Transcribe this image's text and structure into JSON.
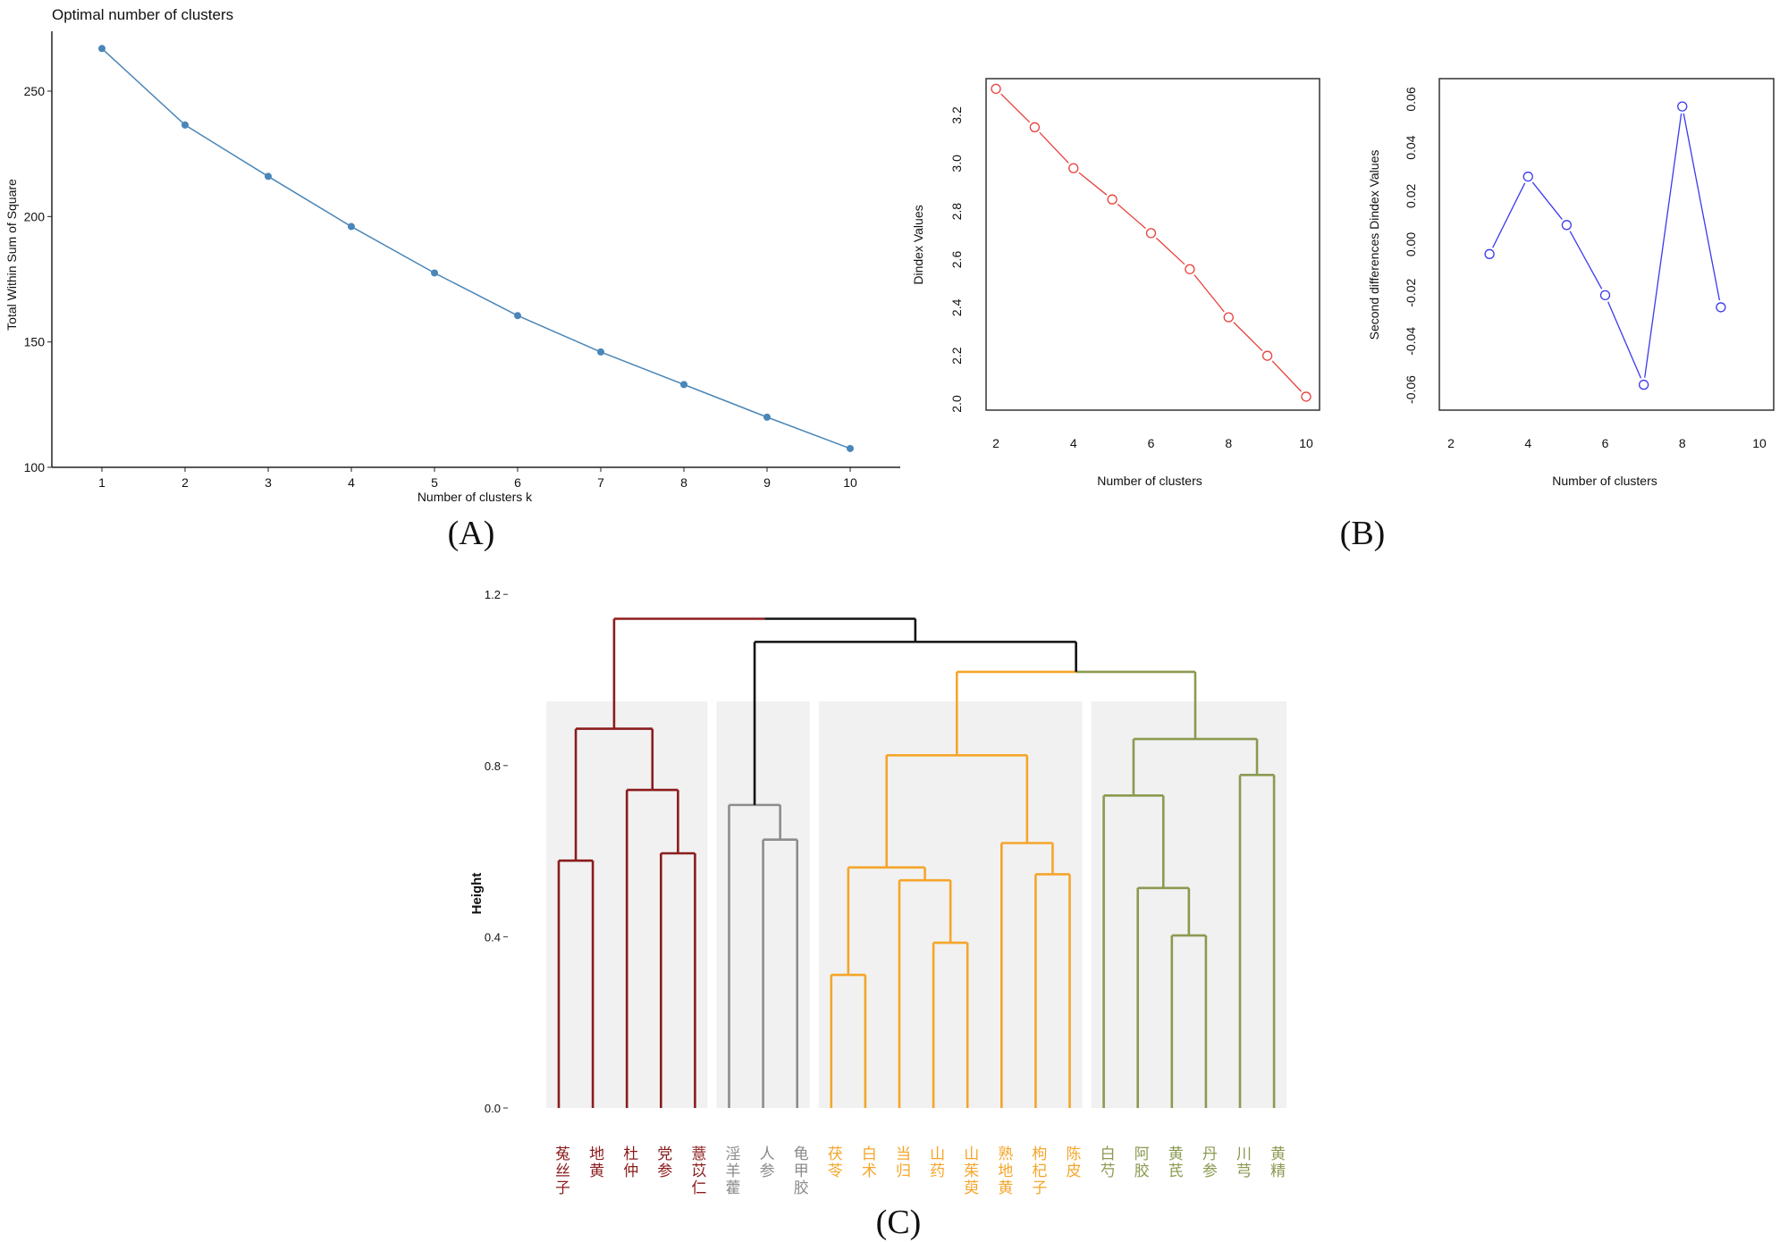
{
  "panel_labels": {
    "a": "(A)",
    "b": "(B)",
    "c": "(C)"
  },
  "chart_data": [
    {
      "id": "elbow",
      "type": "line",
      "title": "Optimal number of clusters",
      "xlabel": "Number of clusters k",
      "ylabel": "Total Within Sum of Square",
      "x": [
        1,
        2,
        3,
        4,
        5,
        6,
        7,
        8,
        9,
        10
      ],
      "values": [
        267,
        236.5,
        216,
        196,
        177.5,
        160.5,
        146,
        133,
        120,
        107.5
      ],
      "yticks": [
        100,
        150,
        200,
        250
      ],
      "ylim": [
        100,
        272
      ],
      "xlim": [
        0.4,
        10.6
      ],
      "color": "#4a86b8",
      "grid": false
    },
    {
      "id": "dindex",
      "type": "line",
      "title": "",
      "xlabel": "Number of clusters",
      "ylabel": "Dindex Values",
      "x": [
        2,
        3,
        4,
        5,
        6,
        7,
        8,
        9,
        10
      ],
      "values": [
        3.31,
        3.15,
        2.98,
        2.85,
        2.71,
        2.56,
        2.36,
        2.2,
        2.03
      ],
      "xticks": [
        2,
        4,
        6,
        8,
        10
      ],
      "yticks": [
        "2.0",
        "2.2",
        "2.4",
        "2.6",
        "2.8",
        "3.0",
        "3.2"
      ],
      "color": "#e8403a",
      "grid": false
    },
    {
      "id": "second-diff",
      "type": "line",
      "title": "",
      "xlabel": "Number of clusters",
      "ylabel": "Second differences Dindex Values",
      "x": [
        3,
        4,
        5,
        6,
        7,
        8,
        9
      ],
      "values": [
        -0.004,
        0.028,
        0.008,
        -0.021,
        -0.058,
        0.057,
        -0.026
      ],
      "xticks": [
        2,
        4,
        6,
        8,
        10
      ],
      "yticks": [
        "-0.06",
        "-0.04",
        "-0.02",
        "0.00",
        "0.02",
        "0.04",
        "0.06"
      ],
      "color": "#3a3aee",
      "grid": false
    },
    {
      "id": "dendrogram",
      "type": "dendrogram",
      "ylabel": "Height",
      "yticks": [
        "0.0",
        "0.4",
        "0.8",
        "1.2"
      ],
      "leaves": [
        "菟丝子",
        "地黄",
        "杜仲",
        "党参",
        "薏苡仁",
        "淫羊藿",
        "人参",
        "龟甲胶",
        "茯苓",
        "白术",
        "当归",
        "山药",
        "山茱萸",
        "熟地黄",
        "枸杞子",
        "陈皮",
        "白芍",
        "阿胶",
        "黄芪",
        "丹参",
        "川芎",
        "黄精"
      ],
      "leaf_cluster": [
        0,
        0,
        0,
        0,
        0,
        1,
        1,
        1,
        2,
        2,
        2,
        2,
        2,
        2,
        2,
        2,
        3,
        3,
        3,
        3,
        3,
        3
      ],
      "cluster_colors": [
        "#8b1c1c",
        "#8c8c8c",
        "#f5a52a",
        "#8a9a50"
      ],
      "top_color": "#111111",
      "cluster_box_height": 0.95,
      "merges": [
        {
          "a": "L0",
          "b": "L1",
          "h": 0.578,
          "c": 0
        },
        {
          "a": "L3",
          "b": "L4",
          "h": 0.595,
          "c": 0
        },
        {
          "a": "L2",
          "b": "M1",
          "h": 0.743,
          "c": 0
        },
        {
          "a": "M0",
          "b": "M2",
          "h": 0.886,
          "c": 0
        },
        {
          "a": "L6",
          "b": "L7",
          "h": 0.627,
          "c": 1
        },
        {
          "a": "L5",
          "b": "M4",
          "h": 0.708,
          "c": 1
        },
        {
          "a": "L8",
          "b": "L9",
          "h": 0.311,
          "c": 2
        },
        {
          "a": "L11",
          "b": "L12",
          "h": 0.386,
          "c": 2
        },
        {
          "a": "L10",
          "b": "M7",
          "h": 0.532,
          "c": 2
        },
        {
          "a": "M6",
          "b": "M8",
          "h": 0.562,
          "c": 2
        },
        {
          "a": "L14",
          "b": "L15",
          "h": 0.546,
          "c": 2
        },
        {
          "a": "L13",
          "b": "M10",
          "h": 0.619,
          "c": 2
        },
        {
          "a": "M9",
          "b": "M11",
          "h": 0.824,
          "c": 2
        },
        {
          "a": "L18",
          "b": "L19",
          "h": 0.403,
          "c": 3
        },
        {
          "a": "L17",
          "b": "M13",
          "h": 0.514,
          "c": 3
        },
        {
          "a": "L16",
          "b": "M14",
          "h": 0.73,
          "c": 3
        },
        {
          "a": "L20",
          "b": "L21",
          "h": 0.778,
          "c": 3
        },
        {
          "a": "M15",
          "b": "M16",
          "h": 0.862,
          "c": 3
        },
        {
          "a": "M12",
          "b": "M17",
          "h": 1.019,
          "c": "split"
        },
        {
          "a": "M5",
          "b": "M18",
          "h": 1.089,
          "c": "top"
        },
        {
          "a": "M3",
          "b": "M19",
          "h": 1.143,
          "c": "top"
        }
      ]
    }
  ]
}
